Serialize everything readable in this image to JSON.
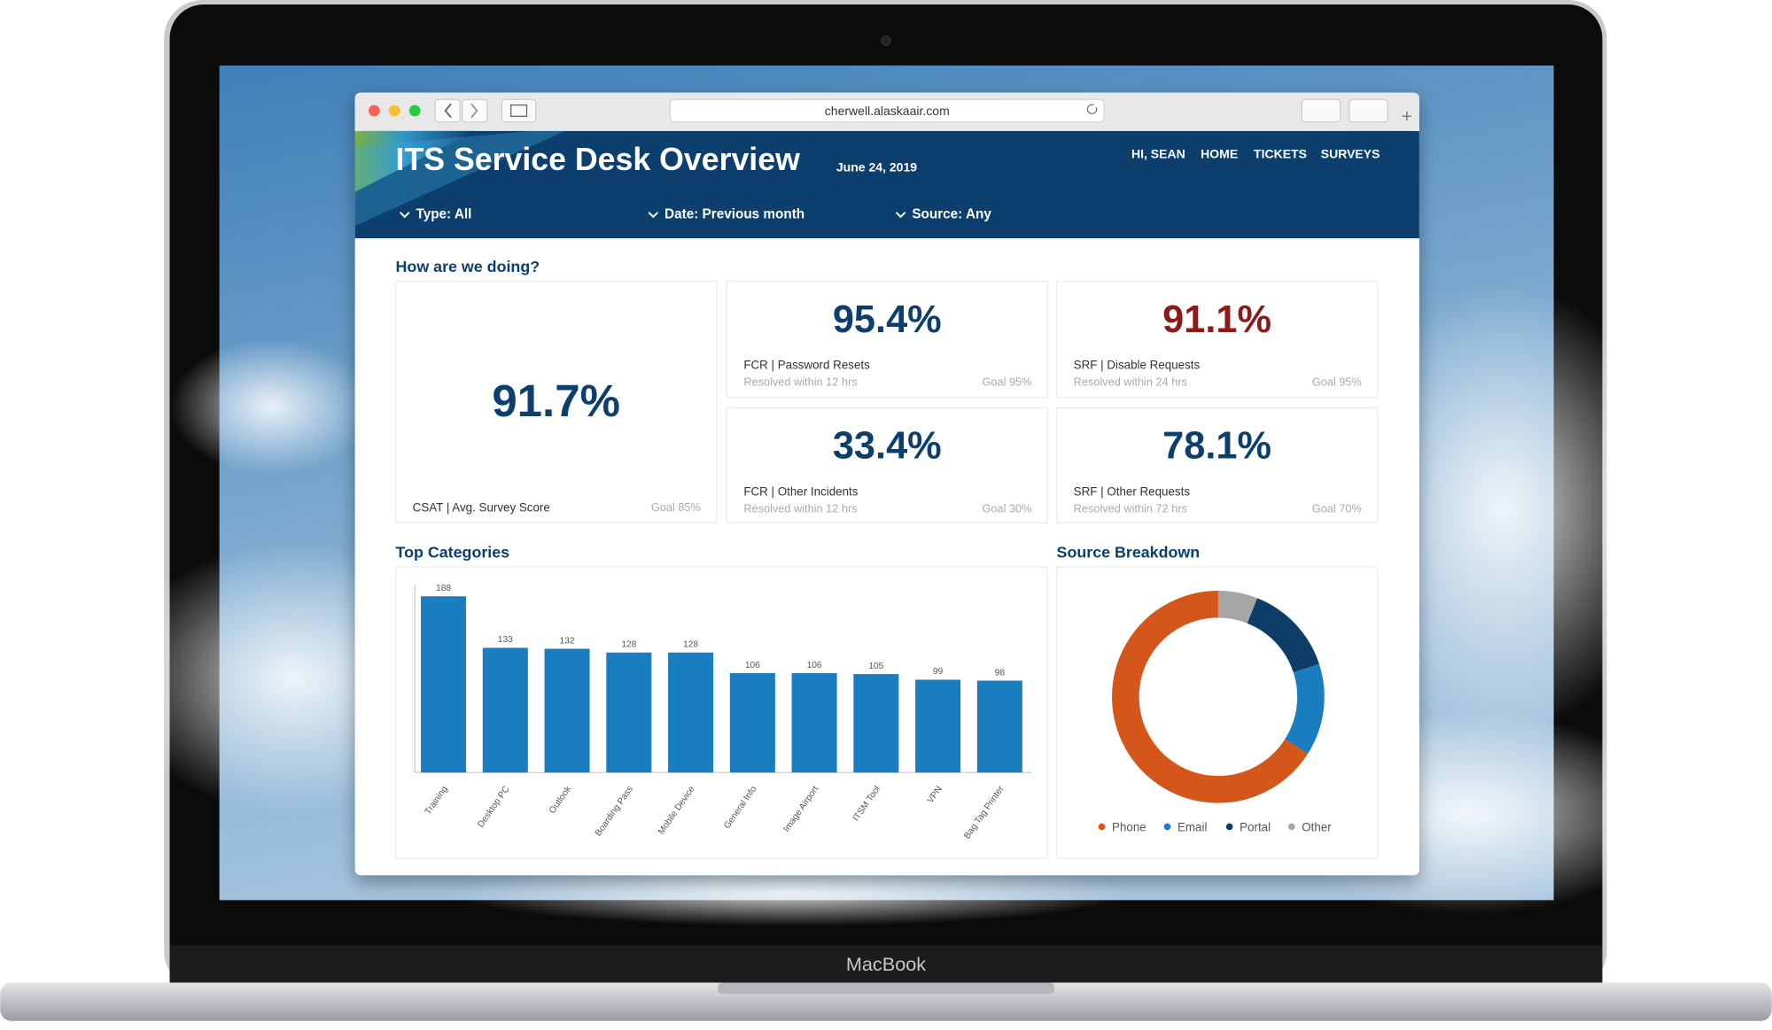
{
  "laptop": {
    "brand": "MacBook"
  },
  "browser": {
    "url": "cherwell.alaskaair.com"
  },
  "header": {
    "title": "ITS Service Desk Overview",
    "date": "June 24, 2019",
    "nav": [
      "HI, SEAN",
      "HOME",
      "TICKETS",
      "SURVEYS"
    ],
    "filters": [
      "Type: All",
      "Date: Previous month",
      "Source: Any"
    ]
  },
  "section_title": "How are we doing?",
  "kpis": [
    {
      "value": "91.7%",
      "label": "CSAT | Avg. Survey Score",
      "goal": "Goal 85%"
    },
    {
      "value": "95.4%",
      "label": "FCR | Password Resets",
      "sub": "Resolved within 12 hrs",
      "goal": "Goal 95%"
    },
    {
      "value": "91.1%",
      "label": "SRF | Disable Requests",
      "sub": "Resolved within 24 hrs",
      "goal": "Goal 95%"
    },
    {
      "value": "33.4%",
      "label": "FCR | Other Incidents",
      "sub": "Resolved within 12 hrs",
      "goal": "Goal 30%"
    },
    {
      "value": "78.1%",
      "label": "SRF | Other Requests",
      "sub": "Resolved within 72 hrs",
      "goal": "Goal 70%"
    }
  ],
  "chart_data": [
    {
      "type": "bar",
      "title": "Top Categories",
      "categories": [
        "Training",
        "Desktop PC",
        "Outlook",
        "Boarding Pass",
        "Mobile Device",
        "General Info",
        "Image Airport",
        "ITSM Tool",
        "VPN",
        "Bag Tag Printer"
      ],
      "values": [
        188,
        133,
        132,
        128,
        128,
        106,
        106,
        105,
        99,
        98
      ],
      "color": "#1a7dbf",
      "ylim": [
        0,
        200
      ]
    },
    {
      "type": "pie",
      "title": "Source Breakdown",
      "categories": [
        "Phone",
        "Email",
        "Portal",
        "Other"
      ],
      "values": [
        66,
        14,
        14,
        6
      ],
      "colors": [
        "#d4561b",
        "#1a7dbf",
        "#0d3c66",
        "#a6a6a6"
      ]
    }
  ]
}
